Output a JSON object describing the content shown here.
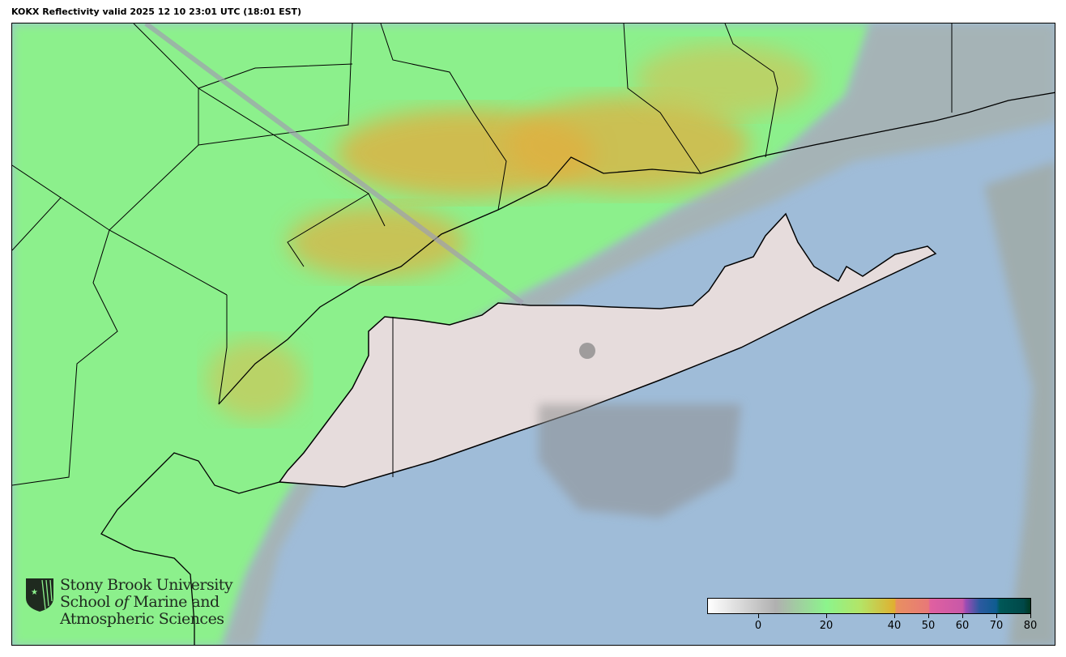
{
  "title": "KOKX Reflectivity valid 2025 12 10 23:01 UTC (18:01 EST)",
  "logo": {
    "line1": "Stony Brook University",
    "line2_a": "School ",
    "line2_b": "of",
    "line2_c": " Marine and",
    "line3": "Atmospheric Sciences"
  },
  "colorbar": {
    "range": [
      -15,
      80
    ],
    "units_hint": "dBZ",
    "ticks": [
      {
        "value": 0,
        "label": "0"
      },
      {
        "value": 20,
        "label": "20"
      },
      {
        "value": 40,
        "label": "40"
      },
      {
        "value": 50,
        "label": "50"
      },
      {
        "value": 60,
        "label": "60"
      },
      {
        "value": 70,
        "label": "70"
      },
      {
        "value": 80,
        "label": "80"
      }
    ],
    "stops": [
      {
        "value": -15,
        "color": "#ffffff"
      },
      {
        "value": 5,
        "color": "#b0b0b0"
      },
      {
        "value": 20,
        "color": "#8cf48c"
      },
      {
        "value": 30,
        "color": "#b4e466"
      },
      {
        "value": 40,
        "color": "#e0b030"
      },
      {
        "value": 40.5,
        "color": "#e89060"
      },
      {
        "value": 50,
        "color": "#e87878"
      },
      {
        "value": 50.5,
        "color": "#e060a0"
      },
      {
        "value": 60,
        "color": "#c858a8"
      },
      {
        "value": 61,
        "color": "#9a4cb4"
      },
      {
        "value": 65,
        "color": "#2c5aa0"
      },
      {
        "value": 70,
        "color": "#0e5c90"
      },
      {
        "value": 71,
        "color": "#005858"
      },
      {
        "value": 78,
        "color": "#004848"
      },
      {
        "value": 80,
        "color": "#003820"
      }
    ]
  },
  "colors": {
    "water": "#9fbcd8",
    "land_clear": "#e6dcdc",
    "light_precip": "#8cf08c",
    "moderate_precip": "#e0b040",
    "border": "#000000"
  }
}
